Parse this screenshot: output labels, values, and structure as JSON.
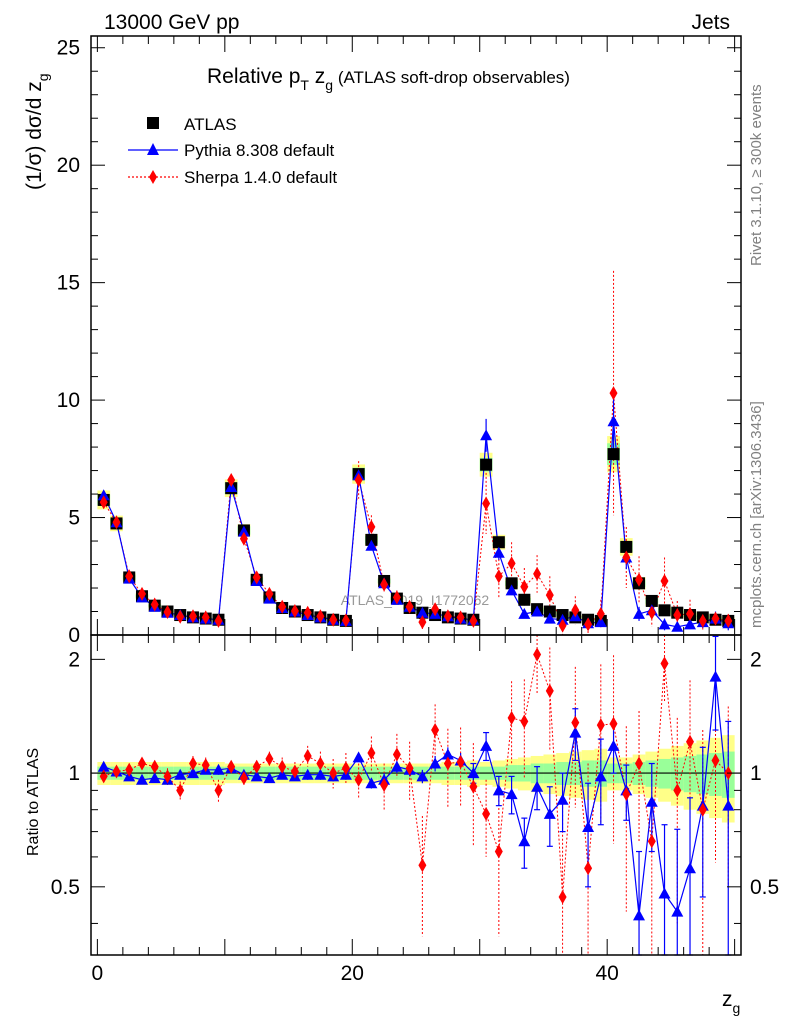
{
  "header": {
    "left": "13000 GeV pp",
    "right": "Jets"
  },
  "title": {
    "main": "Relative p",
    "sub_t": "T",
    "z": " z",
    "sub_g": "g",
    "suffix": " (ATLAS soft-drop observables)"
  },
  "side_labels": {
    "rivet": "Rivet 3.1.10, ≥ 300k events",
    "mcplots": "mcplots.cern.ch [arXiv:1306.3436]"
  },
  "watermark": "ATLAS_2019_I1772062",
  "colors": {
    "data": "#000000",
    "pythia": "#0000ff",
    "sherpa": "#ff0000",
    "band_inner": "#99ff99",
    "band_outer": "#ffff88"
  },
  "chart_data": {
    "type": "scatter",
    "main": {
      "ylabel": "(1/σ) dσ/d z",
      "ylabel_sub": "g",
      "ylim": [
        0,
        25.5
      ],
      "yticks": [
        0,
        5,
        10,
        15,
        20,
        25
      ],
      "yticklabels": [
        "0",
        "5",
        "10",
        "15",
        "20",
        "25"
      ]
    },
    "ratio": {
      "ylabel": "Ratio to ATLAS",
      "ylim": [
        0.33,
        2.32
      ],
      "yticks": [
        0.5,
        1,
        2
      ],
      "yticklabels": [
        "0.5",
        "1",
        "2"
      ]
    },
    "x": {
      "label": "z",
      "label_sub": "g",
      "xlim": [
        -0.5,
        50.5
      ],
      "xticks": [
        0,
        20,
        40
      ],
      "xticklabels": [
        "0",
        "20",
        "40"
      ]
    },
    "legend": [
      {
        "key": "atlas",
        "label": "ATLAS"
      },
      {
        "key": "pythia",
        "label": "Pythia 8.308 default"
      },
      {
        "key": "sherpa",
        "label": "Sherpa 1.4.0 default"
      }
    ],
    "bins": [
      0.5,
      1.5,
      2.5,
      3.5,
      4.5,
      5.5,
      6.5,
      7.5,
      8.5,
      9.5,
      10.5,
      11.5,
      12.5,
      13.5,
      14.5,
      15.5,
      16.5,
      17.5,
      18.5,
      19.5,
      20.5,
      21.5,
      22.5,
      23.5,
      24.5,
      25.5,
      26.5,
      27.5,
      28.5,
      29.5,
      30.5,
      31.5,
      32.5,
      33.5,
      34.5,
      35.5,
      36.5,
      37.5,
      38.5,
      39.5,
      40.5,
      41.5,
      42.5,
      43.5,
      44.5,
      45.5,
      46.5,
      47.5,
      48.5,
      49.5
    ],
    "series": [
      {
        "name": "ATLAS",
        "values": [
          5.75,
          4.75,
          2.45,
          1.65,
          1.25,
          1.0,
          0.85,
          0.75,
          0.7,
          0.65,
          6.25,
          4.45,
          2.35,
          1.6,
          1.15,
          1.0,
          0.85,
          0.75,
          0.65,
          0.6,
          6.85,
          4.05,
          2.3,
          1.55,
          1.15,
          0.95,
          0.85,
          0.75,
          0.7,
          0.65,
          7.25,
          3.95,
          2.2,
          1.5,
          1.1,
          1.0,
          0.85,
          0.75,
          0.65,
          0.6,
          7.7,
          3.75,
          2.2,
          1.45,
          1.05,
          0.95,
          0.85,
          0.75,
          0.65,
          0.6
        ]
      },
      {
        "name": "Pythia 8.308 default",
        "values": [
          5.95,
          4.8,
          2.4,
          1.6,
          1.2,
          0.95,
          0.85,
          0.75,
          0.7,
          0.65,
          6.3,
          4.4,
          2.3,
          1.55,
          1.15,
          1.0,
          0.85,
          0.75,
          0.65,
          0.6,
          6.8,
          3.8,
          2.2,
          1.5,
          1.2,
          0.95,
          0.9,
          0.8,
          0.7,
          0.65,
          8.5,
          3.5,
          1.9,
          0.9,
          1.0,
          0.7,
          0.65,
          0.8,
          0.5,
          0.55,
          9.1,
          3.3,
          0.9,
          1.05,
          0.45,
          0.35,
          0.45,
          0.55,
          0.7,
          0.5
        ],
        "errors": [
          0.05,
          0.05,
          0.05,
          0.03,
          0.03,
          0.03,
          0.03,
          0.03,
          0.03,
          0.03,
          0.05,
          0.05,
          0.05,
          0.03,
          0.03,
          0.03,
          0.03,
          0.03,
          0.03,
          0.03,
          0.05,
          0.06,
          0.05,
          0.04,
          0.04,
          0.04,
          0.04,
          0.04,
          0.04,
          0.04,
          0.7,
          0.3,
          0.2,
          0.15,
          0.15,
          0.15,
          0.15,
          0.15,
          0.15,
          0.15,
          1.4,
          0.5,
          0.3,
          0.3,
          0.25,
          0.2,
          0.2,
          0.25,
          0.3,
          0.3
        ]
      },
      {
        "name": "Sherpa 1.4.0 default",
        "values": [
          5.65,
          4.8,
          2.5,
          1.75,
          1.3,
          0.98,
          0.78,
          0.8,
          0.75,
          0.6,
          6.6,
          4.1,
          2.45,
          1.75,
          1.2,
          1.02,
          0.95,
          0.8,
          0.65,
          0.62,
          6.6,
          4.6,
          2.15,
          1.6,
          1.2,
          0.55,
          1.1,
          0.8,
          0.75,
          0.6,
          5.6,
          2.5,
          3.05,
          2.05,
          2.6,
          1.7,
          0.4,
          1.05,
          0.45,
          0.9,
          10.3,
          3.3,
          2.35,
          0.95,
          2.3,
          0.85,
          0.9,
          0.6,
          0.7,
          0.6
        ],
        "errors": [
          0.1,
          0.1,
          0.1,
          0.08,
          0.06,
          0.05,
          0.05,
          0.05,
          0.05,
          0.05,
          0.2,
          0.2,
          0.12,
          0.1,
          0.08,
          0.08,
          0.08,
          0.07,
          0.07,
          0.07,
          0.8,
          0.5,
          0.3,
          0.3,
          0.25,
          0.3,
          0.25,
          0.25,
          0.2,
          0.2,
          1.3,
          0.9,
          0.9,
          0.8,
          0.8,
          0.8,
          0.5,
          0.6,
          0.4,
          0.6,
          5.2,
          1.3,
          1.0,
          0.6,
          1.0,
          0.6,
          0.6,
          0.4,
          0.3,
          0.3
        ]
      }
    ],
    "ratios": {
      "pythia": [
        1.04,
        1.01,
        0.98,
        0.96,
        0.97,
        0.96,
        0.99,
        1.0,
        1.02,
        1.02,
        1.03,
        0.99,
        0.98,
        0.97,
        0.99,
        0.98,
        0.99,
        0.99,
        0.98,
        0.99,
        1.1,
        0.94,
        0.96,
        1.04,
        1.02,
        0.98,
        1.06,
        1.12,
        1.08,
        1.0,
        1.18,
        0.9,
        0.88,
        0.66,
        0.92,
        0.78,
        0.85,
        1.28,
        0.72,
        0.98,
        1.18,
        0.9,
        0.42,
        0.84,
        0.48,
        0.43,
        0.56,
        0.82,
        1.8,
        0.82
      ],
      "pythia_err": [
        0.02,
        0.02,
        0.02,
        0.02,
        0.02,
        0.02,
        0.02,
        0.02,
        0.02,
        0.03,
        0.02,
        0.02,
        0.02,
        0.02,
        0.02,
        0.02,
        0.03,
        0.03,
        0.03,
        0.03,
        0.03,
        0.03,
        0.04,
        0.04,
        0.04,
        0.04,
        0.05,
        0.05,
        0.05,
        0.06,
        0.1,
        0.08,
        0.1,
        0.1,
        0.12,
        0.14,
        0.15,
        0.2,
        0.22,
        0.25,
        0.18,
        0.15,
        0.2,
        0.22,
        0.25,
        0.28,
        0.3,
        0.35,
        0.5,
        0.55
      ],
      "sherpa": [
        0.98,
        1.01,
        1.02,
        1.06,
        1.04,
        0.98,
        0.9,
        1.06,
        1.05,
        0.9,
        1.04,
        0.97,
        1.04,
        1.09,
        1.04,
        1.01,
        1.11,
        1.06,
        1.0,
        1.03,
        0.96,
        1.13,
        0.93,
        1.12,
        1.03,
        0.57,
        1.3,
        1.06,
        1.07,
        0.92,
        0.78,
        0.62,
        1.4,
        1.37,
        2.06,
        1.65,
        0.47,
        1.36,
        0.56,
        1.34,
        1.35,
        0.88,
        1.06,
        0.66,
        1.95,
        0.9,
        1.21,
        0.8,
        1.08,
        1.0
      ],
      "sherpa_err": [
        0.03,
        0.03,
        0.04,
        0.04,
        0.04,
        0.05,
        0.05,
        0.05,
        0.05,
        0.06,
        0.03,
        0.04,
        0.04,
        0.05,
        0.06,
        0.06,
        0.07,
        0.08,
        0.09,
        0.1,
        0.1,
        0.12,
        0.13,
        0.15,
        0.18,
        0.2,
        0.22,
        0.25,
        0.25,
        0.28,
        0.18,
        0.25,
        0.35,
        0.4,
        0.45,
        0.5,
        0.45,
        0.55,
        0.5,
        0.6,
        0.7,
        0.45,
        0.4,
        0.35,
        0.4,
        0.5,
        0.55,
        0.5,
        0.5,
        0.5
      ],
      "band_inner": [
        0.04,
        0.04,
        0.04,
        0.04,
        0.04,
        0.04,
        0.04,
        0.04,
        0.04,
        0.04,
        0.04,
        0.04,
        0.04,
        0.04,
        0.04,
        0.04,
        0.04,
        0.04,
        0.04,
        0.04,
        0.04,
        0.04,
        0.04,
        0.04,
        0.04,
        0.04,
        0.04,
        0.04,
        0.04,
        0.04,
        0.04,
        0.04,
        0.05,
        0.05,
        0.06,
        0.06,
        0.07,
        0.07,
        0.08,
        0.08,
        0.06,
        0.06,
        0.07,
        0.08,
        0.09,
        0.1,
        0.11,
        0.12,
        0.13,
        0.14
      ],
      "band_outer": [
        0.07,
        0.07,
        0.07,
        0.07,
        0.07,
        0.07,
        0.07,
        0.07,
        0.07,
        0.07,
        0.06,
        0.06,
        0.06,
        0.06,
        0.06,
        0.06,
        0.06,
        0.06,
        0.06,
        0.06,
        0.06,
        0.06,
        0.06,
        0.06,
        0.06,
        0.06,
        0.06,
        0.07,
        0.07,
        0.08,
        0.07,
        0.08,
        0.09,
        0.1,
        0.11,
        0.12,
        0.13,
        0.14,
        0.15,
        0.16,
        0.1,
        0.1,
        0.12,
        0.14,
        0.16,
        0.18,
        0.2,
        0.22,
        0.24,
        0.26
      ]
    }
  }
}
